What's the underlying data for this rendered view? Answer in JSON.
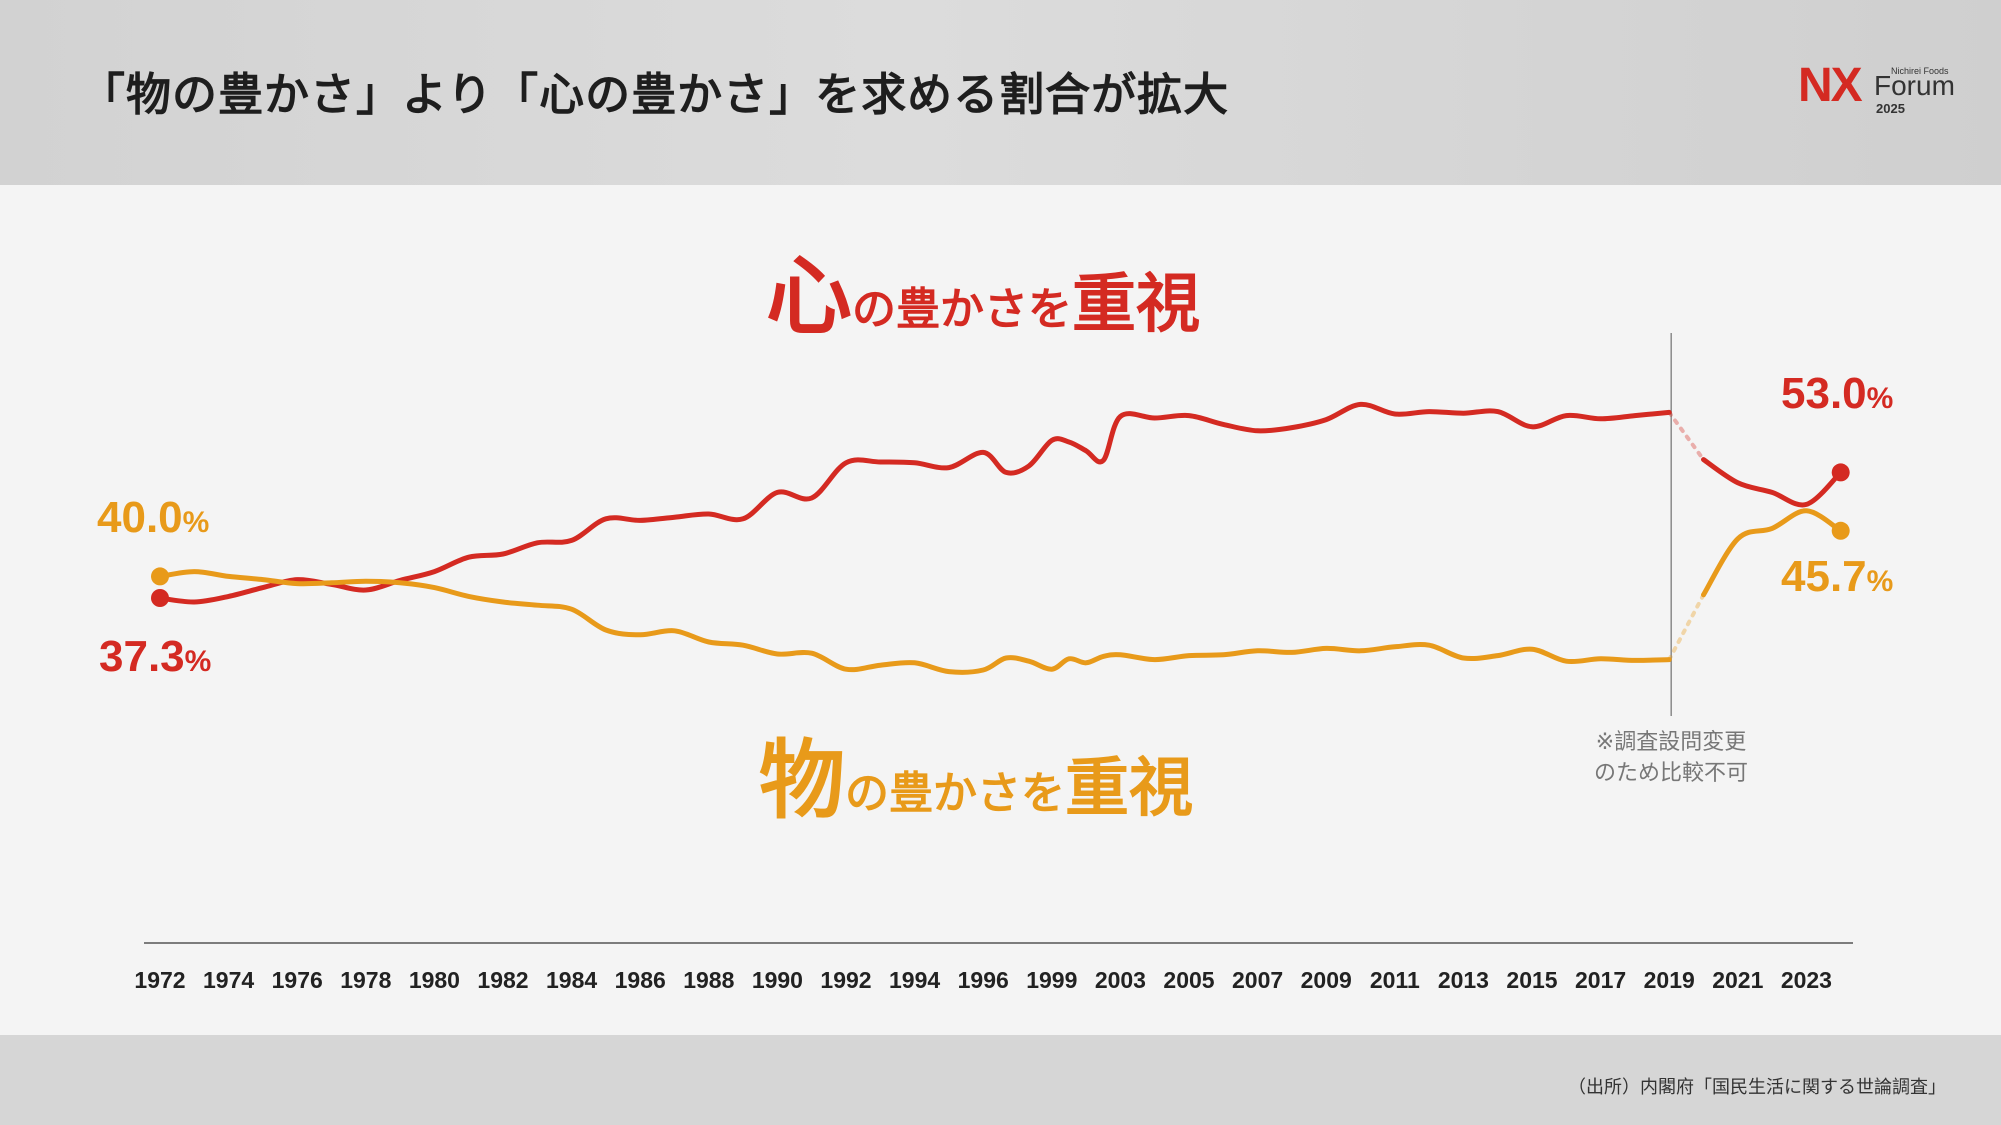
{
  "title": "「物の豊かさ」より「心の豊かさ」を求める割合が拡大",
  "logo": {
    "brand": "NX",
    "company": "Nichirei Foods",
    "event": "Forum",
    "year": "2025"
  },
  "source": "（出所）内閣府「国民生活に関する世論調査」",
  "note": [
    "※調査設問変更",
    "のため比較不可"
  ],
  "colors": {
    "kokoro": "#d42a22",
    "mono": "#e89a1a"
  },
  "chart_data": {
    "type": "line",
    "x_ticks": [
      "1972",
      "1974",
      "1976",
      "1978",
      "1980",
      "1982",
      "1984",
      "1986",
      "1988",
      "1990",
      "1992",
      "1994",
      "1996",
      "1999",
      "2003",
      "2005",
      "2007",
      "2009",
      "2011",
      "2013",
      "2015",
      "2017",
      "2019",
      "2021",
      "2023"
    ],
    "series": [
      {
        "name": "心の豊かさを重視",
        "name_parts": {
          "big1": "心",
          "small": "の豊かさを",
          "big2": "重視"
        },
        "color": "#d42a22",
        "segments": [
          [
            [
              1972.0,
              37.3
            ],
            [
              1973.0,
              36.8
            ],
            [
              1974.0,
              37.5
            ],
            [
              1975.0,
              38.6
            ],
            [
              1976.0,
              39.6
            ],
            [
              1977.0,
              39.0
            ],
            [
              1978.0,
              38.3
            ],
            [
              1979.0,
              39.5
            ],
            [
              1980.0,
              40.6
            ],
            [
              1981.0,
              42.4
            ],
            [
              1982.0,
              42.8
            ],
            [
              1983.0,
              44.2
            ],
            [
              1984.0,
              44.5
            ],
            [
              1985.0,
              47.2
            ],
            [
              1986.0,
              47.0
            ],
            [
              1987.0,
              47.4
            ],
            [
              1988.0,
              47.8
            ],
            [
              1989.0,
              47.2
            ],
            [
              1990.0,
              50.5
            ],
            [
              1991.0,
              49.8
            ],
            [
              1992.0,
              54.2
            ],
            [
              1993.0,
              54.3
            ],
            [
              1994.0,
              54.2
            ],
            [
              1995.0,
              53.6
            ],
            [
              1996.0,
              55.5
            ],
            [
              1997.0,
              53.0
            ],
            [
              1998.0,
              53.8
            ],
            [
              1999.0,
              57.0
            ],
            [
              2000.0,
              56.8
            ],
            [
              2001.0,
              55.7
            ],
            [
              2002.0,
              54.5
            ],
            [
              2003.0,
              60.0
            ],
            [
              2004.0,
              59.8
            ],
            [
              2005.0,
              60.1
            ],
            [
              2006.0,
              59.0
            ],
            [
              2007.0,
              58.2
            ],
            [
              2008.0,
              58.6
            ],
            [
              2009.0,
              59.6
            ],
            [
              2010.0,
              61.5
            ],
            [
              2011.0,
              60.3
            ],
            [
              2012.0,
              60.6
            ],
            [
              2013.0,
              60.4
            ],
            [
              2014.0,
              60.6
            ],
            [
              2015.0,
              58.7
            ],
            [
              2016.0,
              60.1
            ],
            [
              2017.0,
              59.7
            ],
            [
              2018.0,
              60.1
            ],
            [
              2019.0,
              60.5
            ]
          ],
          [
            [
              2020.0,
              54.6
            ],
            [
              2021.0,
              51.7
            ],
            [
              2022.0,
              50.5
            ],
            [
              2023.0,
              49.0
            ],
            [
              2024.0,
              53.0
            ]
          ]
        ],
        "end_value": 53.0
      },
      {
        "name": "物の豊かさを重視",
        "name_parts": {
          "big1": "物",
          "small": "の豊かさを",
          "big2": "重視"
        },
        "color": "#e89a1a",
        "segments": [
          [
            [
              1972.0,
              40.0
            ],
            [
              1973.0,
              40.6
            ],
            [
              1974.0,
              40.0
            ],
            [
              1975.0,
              39.6
            ],
            [
              1976.0,
              39.1
            ],
            [
              1977.0,
              39.2
            ],
            [
              1978.0,
              39.4
            ],
            [
              1979.0,
              39.2
            ],
            [
              1980.0,
              38.6
            ],
            [
              1981.0,
              37.5
            ],
            [
              1982.0,
              36.8
            ],
            [
              1983.0,
              36.4
            ],
            [
              1984.0,
              35.9
            ],
            [
              1985.0,
              33.3
            ],
            [
              1986.0,
              32.7
            ],
            [
              1987.0,
              33.2
            ],
            [
              1988.0,
              31.8
            ],
            [
              1989.0,
              31.4
            ],
            [
              1990.0,
              30.3
            ],
            [
              1991.0,
              30.4
            ],
            [
              1992.0,
              28.4
            ],
            [
              1993.0,
              28.9
            ],
            [
              1994.0,
              29.2
            ],
            [
              1995.0,
              28.1
            ],
            [
              1996.0,
              28.3
            ],
            [
              1997.0,
              29.8
            ],
            [
              1998.0,
              29.4
            ],
            [
              1999.0,
              28.4
            ],
            [
              2000.0,
              29.7
            ],
            [
              2001.0,
              29.2
            ],
            [
              2002.0,
              30.0
            ],
            [
              2003.0,
              30.2
            ],
            [
              2004.0,
              29.6
            ],
            [
              2005.0,
              30.1
            ],
            [
              2006.0,
              30.2
            ],
            [
              2007.0,
              30.7
            ],
            [
              2008.0,
              30.5
            ],
            [
              2009.0,
              31.0
            ],
            [
              2010.0,
              30.7
            ],
            [
              2011.0,
              31.2
            ],
            [
              2012.0,
              31.4
            ],
            [
              2013.0,
              29.8
            ],
            [
              2014.0,
              30.1
            ],
            [
              2015.0,
              30.9
            ],
            [
              2016.0,
              29.4
            ],
            [
              2017.0,
              29.7
            ],
            [
              2018.0,
              29.5
            ],
            [
              2019.0,
              29.6
            ]
          ],
          [
            [
              2020.0,
              37.7
            ],
            [
              2021.0,
              44.7
            ],
            [
              2022.0,
              46.0
            ],
            [
              2023.0,
              48.2
            ],
            [
              2024.0,
              45.7
            ]
          ]
        ],
        "end_value": 45.7
      }
    ],
    "start_labels": {
      "kokoro": "37.3",
      "mono": "40.0"
    },
    "end_labels": {
      "kokoro": "53.0",
      "mono": "45.7"
    },
    "unit": "%"
  }
}
